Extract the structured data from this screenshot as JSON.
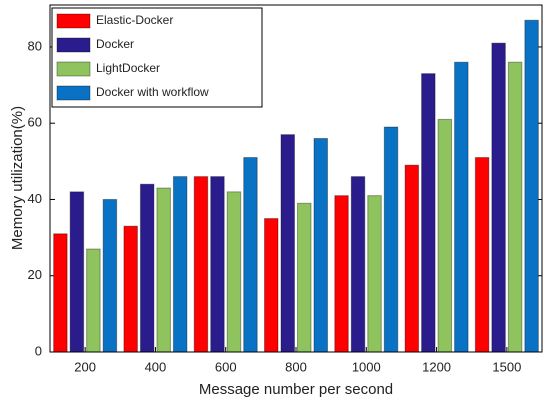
{
  "chart_data": {
    "type": "bar",
    "x_label": "Message number per second",
    "y_label": "Memory utilization(%)",
    "categories": [
      "200",
      "400",
      "600",
      "800",
      "1000",
      "1200",
      "1500"
    ],
    "series": [
      {
        "name": "Elastic-Docker",
        "color": "#ff0000",
        "values": [
          31,
          33,
          46,
          35,
          41,
          49,
          51
        ]
      },
      {
        "name": "Docker",
        "color": "#2b1c8e",
        "values": [
          42,
          44,
          46,
          57,
          46,
          73,
          81
        ]
      },
      {
        "name": "LightDocker",
        "color": "#8fc35e",
        "values": [
          27,
          43,
          42,
          39,
          41,
          61,
          76
        ]
      },
      {
        "name": "Docker with workflow",
        "color": "#0a72c4",
        "values": [
          40,
          46,
          51,
          56,
          59,
          76,
          87
        ]
      }
    ],
    "ylim": [
      0,
      91
    ],
    "yticks": [
      0,
      20,
      40,
      60,
      80
    ],
    "legend": "upper-left"
  }
}
